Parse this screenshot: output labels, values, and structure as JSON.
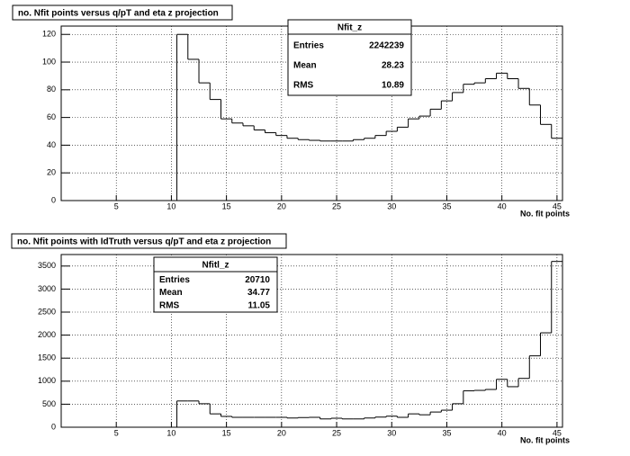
{
  "chart_data": [
    {
      "type": "histogram",
      "title": "no. Nfit points versus q/pT and eta z projection",
      "x_label": "No. fit points",
      "bins": [
        10.5,
        11.5,
        12.5,
        13.5,
        14.5,
        15.5,
        16.5,
        17.5,
        18.5,
        19.5,
        20.5,
        21.5,
        22.5,
        23.5,
        24.5,
        25.5,
        26.5,
        27.5,
        28.5,
        29.5,
        30.5,
        31.5,
        32.5,
        33.5,
        34.5,
        35.5,
        36.5,
        37.5,
        38.5,
        39.5,
        40.5,
        41.5,
        42.5,
        43.5,
        44.5,
        45.5
      ],
      "values": [
        120,
        102,
        85,
        73,
        59,
        56,
        54,
        51,
        49,
        47,
        45,
        44,
        43.5,
        43,
        43,
        43,
        44,
        45,
        47,
        50,
        53,
        59,
        61,
        66,
        72,
        78,
        84,
        85,
        88,
        92,
        88,
        81,
        69,
        55,
        45
      ],
      "color": "#000000",
      "xlim": [
        0,
        45.5
      ],
      "xticks": [
        5,
        10,
        15,
        20,
        25,
        30,
        35,
        40,
        45
      ],
      "ylim": [
        0,
        126
      ],
      "yticks": [
        0,
        20,
        40,
        60,
        80,
        100,
        120
      ],
      "grid": true,
      "stats": {
        "title": "Nfit_z",
        "rows": [
          {
            "label": "Entries",
            "value": 2242239
          },
          {
            "label": "Mean",
            "value": 28.23
          },
          {
            "label": "RMS",
            "value": 10.89
          }
        ]
      }
    },
    {
      "type": "histogram",
      "title": "no. Nfit points with IdTruth versus q/pT and eta z projection",
      "x_label": "No. fit points",
      "bins": [
        10.5,
        11.5,
        12.5,
        13.5,
        14.5,
        15.5,
        16.5,
        17.5,
        18.5,
        19.5,
        20.5,
        21.5,
        22.5,
        23.5,
        24.5,
        25.5,
        26.5,
        27.5,
        28.5,
        29.5,
        30.5,
        31.5,
        32.5,
        33.5,
        34.5,
        35.5,
        36.5,
        37.5,
        38.5,
        39.5,
        40.5,
        41.5,
        42.5,
        43.5,
        44.5,
        45.5
      ],
      "values": [
        570,
        570,
        510,
        290,
        235,
        215,
        215,
        215,
        215,
        215,
        200,
        210,
        215,
        180,
        195,
        180,
        180,
        200,
        220,
        240,
        215,
        290,
        270,
        330,
        370,
        510,
        790,
        800,
        820,
        1040,
        880,
        1060,
        1550,
        2050,
        3600
      ],
      "color": "#000000",
      "xlim": [
        0,
        45.5
      ],
      "xticks": [
        5,
        10,
        15,
        20,
        25,
        30,
        35,
        40,
        45
      ],
      "ylim": [
        0,
        3750
      ],
      "yticks": [
        0,
        500,
        1000,
        1500,
        2000,
        2500,
        3000,
        3500
      ],
      "grid": true,
      "stats": {
        "title": "Nfitl_z",
        "rows": [
          {
            "label": "Entries",
            "value": 20710
          },
          {
            "label": "Mean",
            "value": 34.77
          },
          {
            "label": "RMS",
            "value": 11.05
          }
        ]
      }
    }
  ]
}
